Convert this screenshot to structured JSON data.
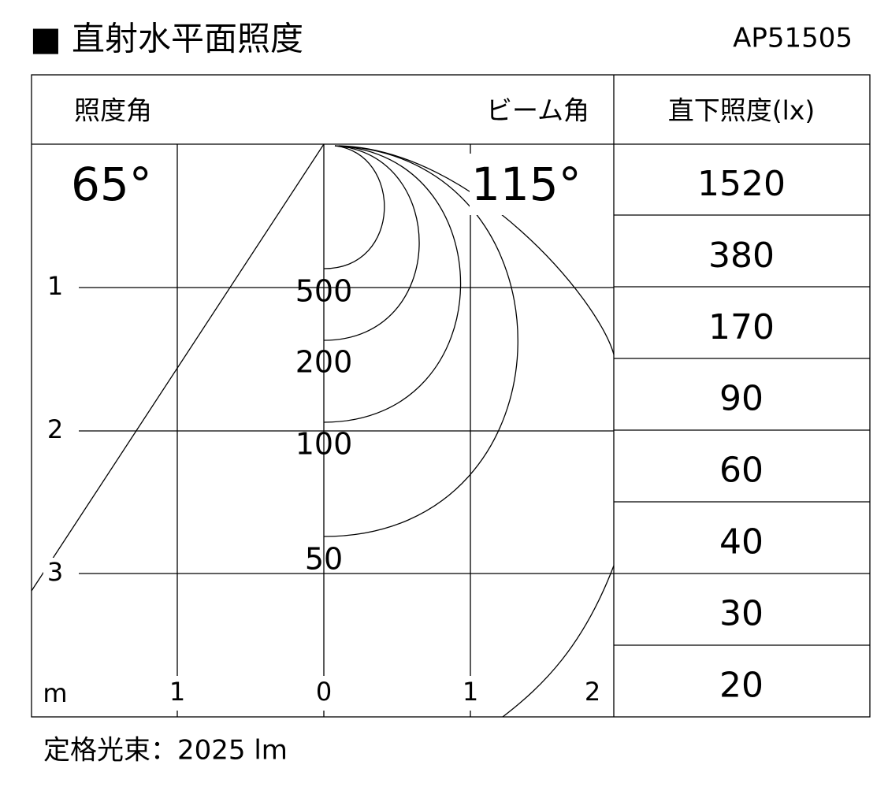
{
  "header": {
    "title": "■ 直射水平面照度",
    "model": "AP51505"
  },
  "diagram": {
    "illuminance_angle_label": "照度角",
    "beam_angle_label": "ビーム角",
    "illuminance_angle": "65°",
    "beam_angle": "115°",
    "contour_labels": [
      "500",
      "200",
      "100",
      "50"
    ],
    "depth_labels": [
      "1",
      "2",
      "3"
    ],
    "unit": "m",
    "width_labels": [
      "1",
      "0",
      "1",
      "2"
    ]
  },
  "table": {
    "header": "直下照度(lx)",
    "rows": [
      "1520",
      "380",
      "170",
      "90",
      "60",
      "40",
      "30",
      "20"
    ]
  },
  "footer": "定格光束：2025 lm"
}
